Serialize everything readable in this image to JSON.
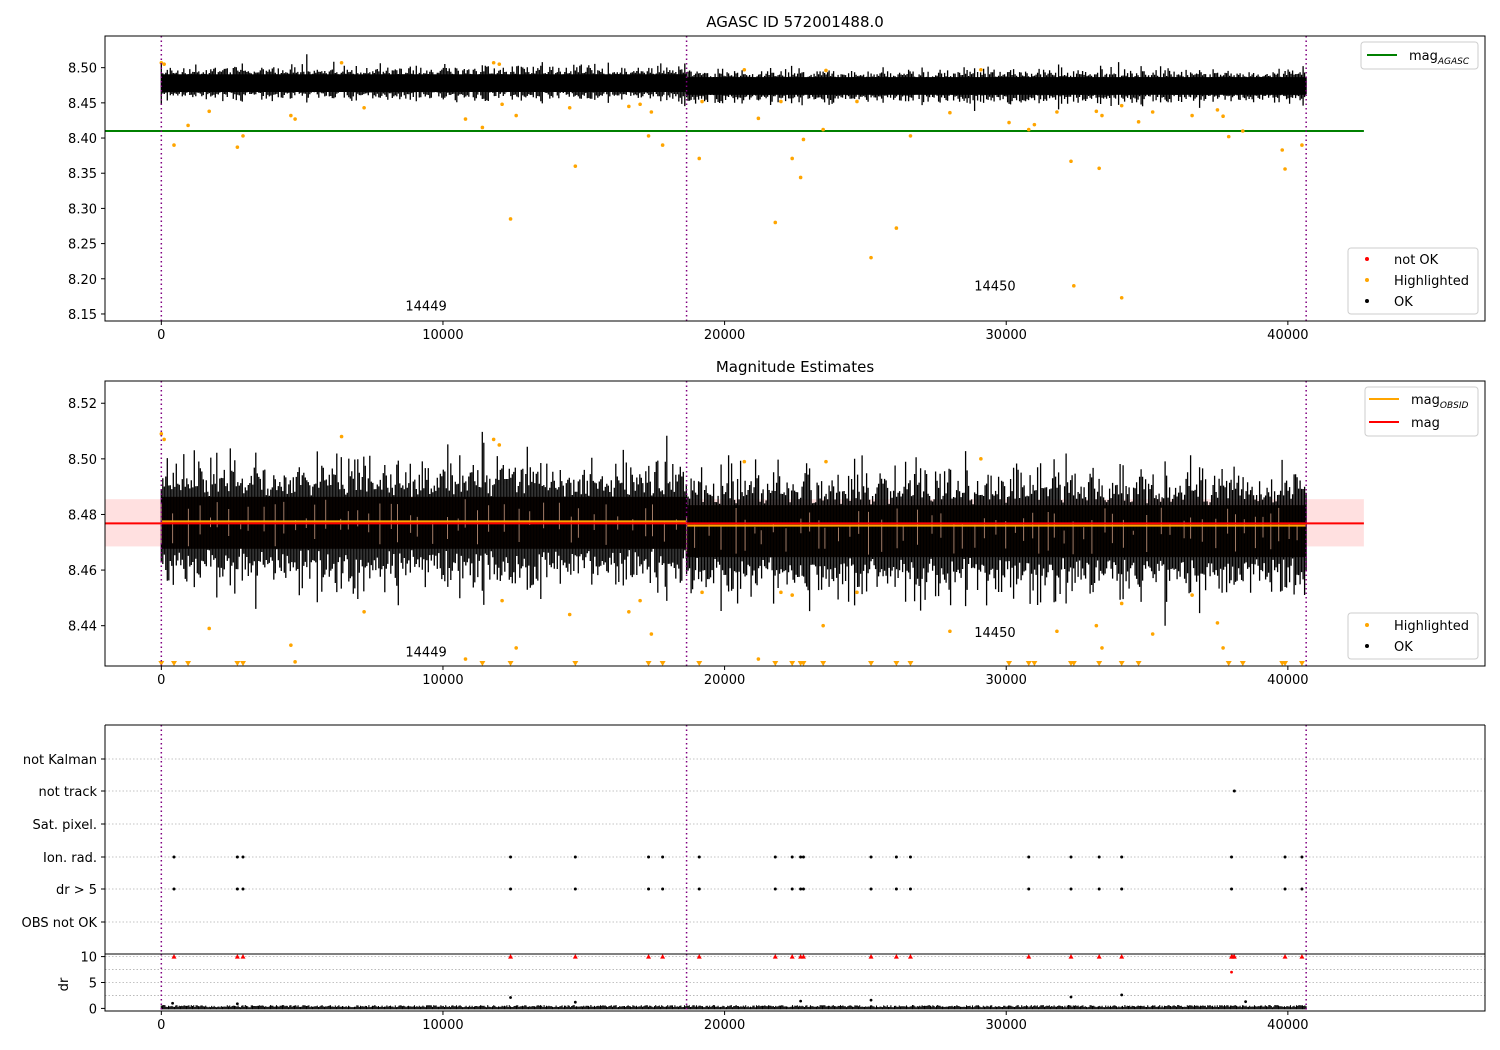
{
  "chart_data": [
    {
      "type": "scatter",
      "title": "AGASC ID 572001488.0",
      "xlim": [
        -2000,
        47000
      ],
      "ylim": [
        8.14,
        8.545
      ],
      "xticks": [
        0,
        10000,
        20000,
        30000,
        40000
      ],
      "yticks": [
        8.15,
        8.2,
        8.25,
        8.3,
        8.35,
        8.4,
        8.45,
        8.5
      ],
      "obsid_boundaries": [
        0,
        18650,
        40650
      ],
      "obsid_labels": [
        {
          "text": "14449",
          "x": 9400,
          "y": 8.155
        },
        {
          "text": "14450",
          "x": 29600,
          "y": 8.183
        }
      ],
      "lines": [
        {
          "name": "mag_AGASC",
          "value": 8.41,
          "x": [
            -2000,
            42700
          ],
          "color": "#008000"
        }
      ],
      "ok_band": {
        "center_seg1": 8.478,
        "center_seg2": 8.474,
        "half_width": 0.018
      },
      "highlighted": [
        [
          0,
          8.507
        ],
        [
          100,
          8.505
        ],
        [
          450,
          8.39
        ],
        [
          950,
          8.418
        ],
        [
          1700,
          8.438
        ],
        [
          2700,
          8.387
        ],
        [
          2900,
          8.403
        ],
        [
          4600,
          8.432
        ],
        [
          4750,
          8.427
        ],
        [
          6400,
          8.507
        ],
        [
          7200,
          8.443
        ],
        [
          10800,
          8.427
        ],
        [
          11400,
          8.415
        ],
        [
          11800,
          8.507
        ],
        [
          12000,
          8.505
        ],
        [
          12100,
          8.448
        ],
        [
          12400,
          8.285
        ],
        [
          12600,
          8.432
        ],
        [
          14500,
          8.443
        ],
        [
          14700,
          8.36
        ],
        [
          16600,
          8.445
        ],
        [
          17000,
          8.448
        ],
        [
          17300,
          8.403
        ],
        [
          17400,
          8.437
        ],
        [
          17800,
          8.39
        ],
        [
          19100,
          8.371
        ],
        [
          19200,
          8.452
        ],
        [
          20700,
          8.497
        ],
        [
          21200,
          8.428
        ],
        [
          21800,
          8.28
        ],
        [
          22000,
          8.452
        ],
        [
          22400,
          8.371
        ],
        [
          22700,
          8.344
        ],
        [
          22800,
          8.398
        ],
        [
          23500,
          8.412
        ],
        [
          23600,
          8.496
        ],
        [
          24700,
          8.452
        ],
        [
          25200,
          8.23
        ],
        [
          26100,
          8.272
        ],
        [
          26600,
          8.403
        ],
        [
          28000,
          8.436
        ],
        [
          29100,
          8.497
        ],
        [
          30100,
          8.422
        ],
        [
          30800,
          8.412
        ],
        [
          31000,
          8.419
        ],
        [
          31800,
          8.437
        ],
        [
          32300,
          8.367
        ],
        [
          32400,
          8.19
        ],
        [
          33200,
          8.438
        ],
        [
          33300,
          8.357
        ],
        [
          33400,
          8.432
        ],
        [
          34100,
          8.446
        ],
        [
          34100,
          8.173
        ],
        [
          34700,
          8.423
        ],
        [
          35200,
          8.437
        ],
        [
          36600,
          8.432
        ],
        [
          37500,
          8.44
        ],
        [
          37700,
          8.431
        ],
        [
          37900,
          8.402
        ],
        [
          38400,
          8.41
        ],
        [
          39800,
          8.383
        ],
        [
          39900,
          8.356
        ],
        [
          40500,
          8.39
        ]
      ],
      "legend": [
        {
          "label": "mag",
          "sub": "AGASC",
          "color": "#008000",
          "kind": "line"
        },
        {
          "label": "not OK",
          "color": "#ff0000",
          "kind": "dot"
        },
        {
          "label": "Highlighted",
          "color": "#ffa500",
          "kind": "dot"
        },
        {
          "label": "OK",
          "color": "#000000",
          "kind": "dot"
        }
      ]
    },
    {
      "type": "scatter",
      "title": "Magnitude Estimates",
      "xlim": [
        -2000,
        47000
      ],
      "ylim": [
        8.4255,
        8.528
      ],
      "xticks": [
        0,
        10000,
        20000,
        30000,
        40000
      ],
      "yticks": [
        8.44,
        8.46,
        8.48,
        8.5,
        8.52
      ],
      "obsid_boundaries": [
        0,
        18650,
        40650
      ],
      "obsid_labels": [
        {
          "text": "14449",
          "x": 9400,
          "y": 8.429
        },
        {
          "text": "14450",
          "x": 29600,
          "y": 8.436
        }
      ],
      "lines": [
        {
          "name": "mag_OBSID",
          "value": 8.4775,
          "x": [
            0,
            18650
          ],
          "color": "#ffa500"
        },
        {
          "name": "mag_OBSID",
          "value": 8.476,
          "x": [
            18650,
            40650
          ],
          "color": "#ffa500"
        },
        {
          "name": "mag",
          "value": 8.4768,
          "x": [
            -2000,
            42700
          ],
          "color": "#ff0000"
        }
      ],
      "mag_band": [
        8.4685,
        8.4855
      ],
      "ok_band": {
        "center_seg1": 8.477,
        "center_seg2": 8.474,
        "half_width": 0.017
      },
      "highlighted": [
        [
          0,
          8.509
        ],
        [
          100,
          8.507
        ],
        [
          1700,
          8.439
        ],
        [
          4600,
          8.433
        ],
        [
          4750,
          8.427
        ],
        [
          6400,
          8.508
        ],
        [
          7200,
          8.445
        ],
        [
          10800,
          8.428
        ],
        [
          11800,
          8.507
        ],
        [
          12000,
          8.505
        ],
        [
          12100,
          8.449
        ],
        [
          12600,
          8.432
        ],
        [
          14500,
          8.444
        ],
        [
          16600,
          8.445
        ],
        [
          17000,
          8.449
        ],
        [
          17400,
          8.437
        ],
        [
          19200,
          8.452
        ],
        [
          20700,
          8.499
        ],
        [
          21200,
          8.428
        ],
        [
          22000,
          8.452
        ],
        [
          22400,
          8.451
        ],
        [
          23500,
          8.44
        ],
        [
          23600,
          8.499
        ],
        [
          24700,
          8.452
        ],
        [
          28000,
          8.438
        ],
        [
          29100,
          8.5
        ],
        [
          31800,
          8.438
        ],
        [
          33200,
          8.44
        ],
        [
          33400,
          8.432
        ],
        [
          34100,
          8.448
        ],
        [
          35200,
          8.437
        ],
        [
          36600,
          8.451
        ],
        [
          37500,
          8.441
        ],
        [
          37700,
          8.432
        ]
      ],
      "clipped_low_x": [
        0,
        450,
        950,
        2700,
        2900,
        11400,
        12400,
        14700,
        17300,
        17800,
        19100,
        21800,
        22400,
        22700,
        22800,
        23500,
        25200,
        26100,
        26600,
        30100,
        30800,
        31000,
        32300,
        32400,
        33300,
        34100,
        34700,
        37900,
        38400,
        39800,
        39900,
        40500
      ],
      "legend": [
        {
          "label": "mag",
          "sub": "OBSID",
          "color": "#ffa500",
          "kind": "line"
        },
        {
          "label": "mag",
          "color": "#ff0000",
          "kind": "line"
        },
        {
          "label": "Highlighted",
          "color": "#ffa500",
          "kind": "dot"
        },
        {
          "label": "OK",
          "color": "#000000",
          "kind": "dot"
        }
      ]
    },
    {
      "type": "scatter",
      "title": "",
      "xlim": [
        -2000,
        47000
      ],
      "categories": [
        "not Kalman",
        "not track",
        "Sat. pixel.",
        "Ion. rad.",
        "dr > 5",
        "OBS not OK"
      ],
      "flags": {
        "not track": [
          38100
        ],
        "Ion. rad.": [
          450,
          2700,
          2900,
          12400,
          14700,
          17300,
          17800,
          19100,
          21800,
          22400,
          22700,
          22800,
          25200,
          26100,
          26600,
          30800,
          32300,
          33300,
          34100,
          38000,
          39900,
          40500
        ],
        "dr > 5": [
          450,
          2700,
          2900,
          12400,
          14700,
          17300,
          17800,
          19100,
          21800,
          22400,
          22700,
          22800,
          25200,
          26100,
          26600,
          30800,
          32300,
          33300,
          34100,
          38000,
          39900,
          40500
        ]
      },
      "obsid_boundaries": [
        0,
        18650,
        40650
      ]
    },
    {
      "type": "scatter",
      "title": "",
      "ylabel": "dr",
      "xlim": [
        -2000,
        47000
      ],
      "ylim": [
        -0.5,
        10.5
      ],
      "xticks": [
        0,
        10000,
        20000,
        30000,
        40000
      ],
      "yticks": [
        0,
        5,
        10
      ],
      "obsid_boundaries": [
        0,
        18650,
        40650
      ],
      "clipped_high_x": [
        450,
        2700,
        2900,
        12400,
        14700,
        17300,
        17800,
        19100,
        21800,
        22400,
        22700,
        22800,
        25200,
        26100,
        26600,
        30800,
        32300,
        33300,
        34100,
        38000,
        38050,
        38100,
        39900,
        40500
      ],
      "dr_outliers": [
        [
          12400,
          2.1
        ],
        [
          14700,
          1.2
        ],
        [
          22700,
          1.4
        ],
        [
          25200,
          1.6
        ],
        [
          32300,
          2.2
        ],
        [
          34100,
          2.6
        ],
        [
          38000,
          7.0
        ],
        [
          38500,
          1.3
        ],
        [
          400,
          1.0
        ],
        [
          2700,
          0.9
        ]
      ]
    }
  ]
}
